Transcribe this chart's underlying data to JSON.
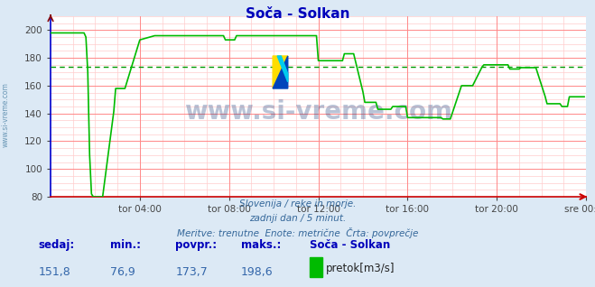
{
  "title": "Soča - Solkan",
  "bg_color": "#dce9f5",
  "plot_bg_color": "#ffffff",
  "line_color": "#00bb00",
  "avg_line_color": "#009900",
  "grid_major_color": "#ff8888",
  "grid_minor_color": "#ffcccc",
  "axis_color": "#0000cc",
  "title_color": "#0000bb",
  "ylim": [
    80,
    210
  ],
  "yticks": [
    80,
    100,
    120,
    140,
    160,
    180,
    200
  ],
  "avg_value": 173.7,
  "xtick_labels": [
    "tor 04:00",
    "tor 08:00",
    "tor 12:00",
    "tor 16:00",
    "tor 20:00",
    "sre 00:00"
  ],
  "watermark": "www.si-vreme.com",
  "watermark_color": "#1a3a7a",
  "subtitle1": "Slovenija / reke in morje.",
  "subtitle2": "zadnji dan / 5 minut.",
  "subtitle3": "Meritve: trenutne  Enote: metrične  Črta: povprečje",
  "footer_label_color": "#0000bb",
  "footer_value_color": "#3366aa",
  "sedaj_label": "sedaj:",
  "min_label": "min.:",
  "povpr_label": "povpr.:",
  "maks_label": "maks.:",
  "station_label": "Soča - Solkan",
  "legend_label": "pretok[m3/s]",
  "sedaj_val": "151,8",
  "min_val": "76,9",
  "povpr_val": "173,7",
  "maks_val": "198,6",
  "left_label": "www.si-vreme.com",
  "n_points": 288
}
